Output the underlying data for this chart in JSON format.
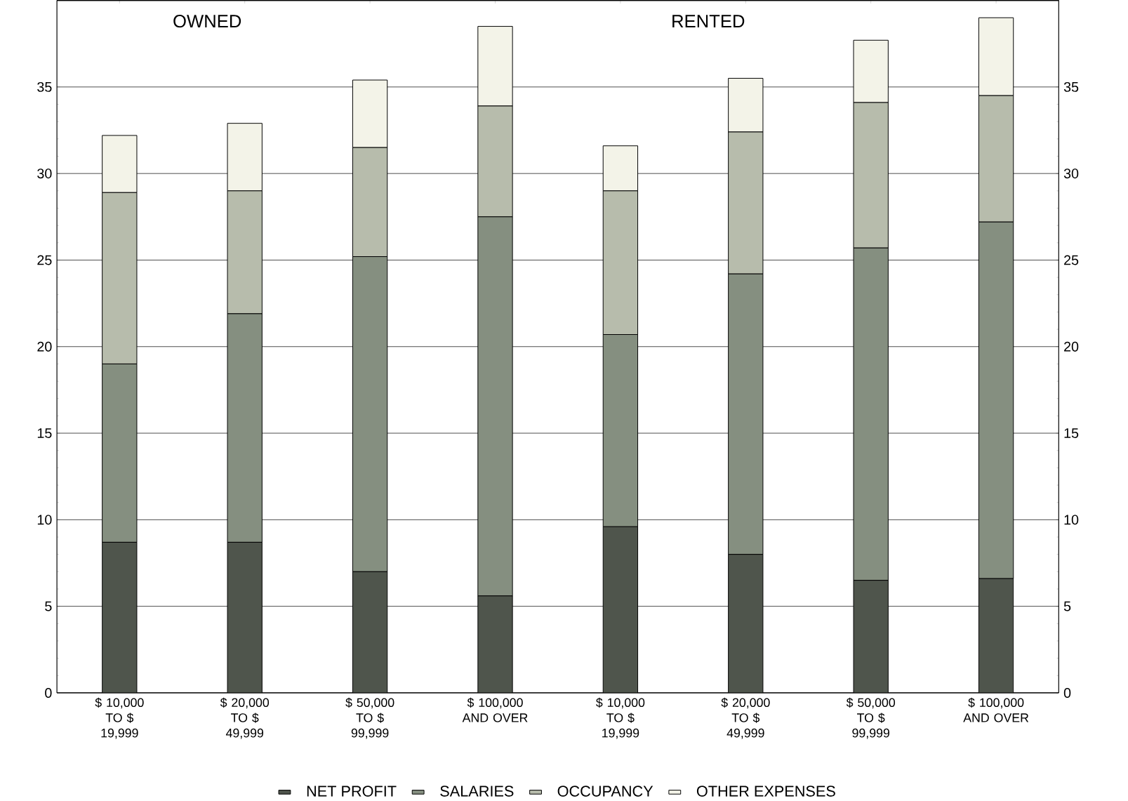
{
  "chart_data": {
    "type": "bar",
    "stacked": true,
    "categories": [
      "$ 10,000 TO $ 19,999",
      "$ 20,000 TO $ 49,999",
      "$ 50,000 TO $ 99,999",
      "$ 100,000 AND OVER",
      "$ 10,000 TO $ 19,999",
      "$ 20,000 TO $ 49,999",
      "$ 50,000 TO $ 99,999",
      "$ 100,000 AND OVER"
    ],
    "series": [
      {
        "name": "NET PROFIT",
        "color": "#4f554c",
        "values": [
          8.7,
          8.7,
          7.0,
          5.6,
          9.6,
          8.0,
          6.5,
          6.6
        ]
      },
      {
        "name": "SALARIES",
        "color": "#858f80",
        "values": [
          10.3,
          13.2,
          18.2,
          21.9,
          11.1,
          16.2,
          19.2,
          20.6
        ]
      },
      {
        "name": "OCCUPANCY",
        "color": "#b7bcac",
        "values": [
          9.9,
          7.1,
          6.3,
          6.4,
          8.3,
          8.2,
          8.4,
          7.3
        ]
      },
      {
        "name": "OTHER EXPENSES",
        "color": "#f3f3e8",
        "values": [
          3.3,
          3.9,
          3.9,
          4.6,
          2.6,
          3.1,
          3.6,
          4.5
        ]
      }
    ],
    "ylim": [
      0,
      40
    ],
    "yticks": [
      0,
      5,
      10,
      15,
      20,
      25,
      30,
      35
    ],
    "y2lim": [
      0,
      40
    ],
    "y2ticks": [
      0,
      5,
      10,
      15,
      20,
      25,
      30,
      35
    ],
    "grid": "y",
    "legend": "bottom",
    "annotations": [
      "OWNED",
      "RENTED"
    ]
  }
}
